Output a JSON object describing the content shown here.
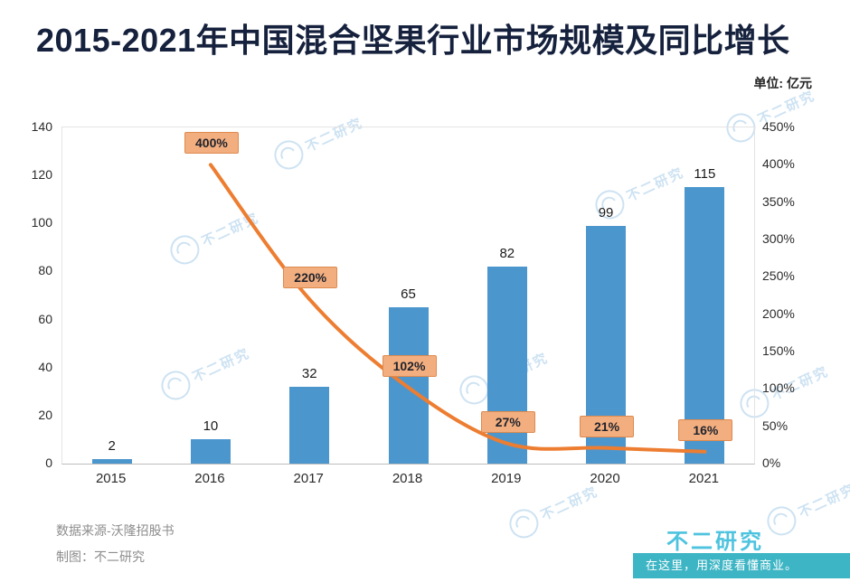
{
  "title": "2015-2021年中国混合坚果行业市场规模及同比增长",
  "unit_label": "单位: 亿元",
  "watermark_text": "不二研究",
  "footer": {
    "source": "数据来源-沃隆招股书",
    "credit": "制图：不二研究",
    "brand": "不二研究",
    "tagline": "在这里，用深度看懂商业。"
  },
  "colors": {
    "bar": "#4C96CE",
    "line": "#ED7D31",
    "label_box_bg": "#F3AE7F",
    "label_box_border": "#DE8A4E",
    "brand_teal": "#3EB5C4",
    "title_color": "#15213d",
    "watermark": "#a5cbe9"
  },
  "chart_data": {
    "type": "bar",
    "subtype": "bar+line combo",
    "title": "2015-2021年中国混合坚果行业市场规模及同比增长",
    "categories": [
      "2015",
      "2016",
      "2017",
      "2018",
      "2019",
      "2020",
      "2021"
    ],
    "series": [
      {
        "name": "市场规模(亿元)",
        "type": "bar",
        "axis": "left",
        "values": [
          2,
          10,
          32,
          65,
          82,
          99,
          115
        ],
        "value_labels": [
          "2",
          "10",
          "32",
          "65",
          "82",
          "99",
          "115"
        ]
      },
      {
        "name": "同比增长",
        "type": "line",
        "axis": "right",
        "x": [
          "2016",
          "2017",
          "2018",
          "2019",
          "2020",
          "2021"
        ],
        "values_pct": [
          400,
          220,
          102,
          27,
          21,
          16
        ],
        "value_labels": [
          "400%",
          "220%",
          "102%",
          "27%",
          "21%",
          "16%"
        ]
      }
    ],
    "left_axis": {
      "min": 0,
      "max": 140,
      "ticks": [
        "140",
        "120",
        "100",
        "80",
        "60",
        "40",
        "20",
        "0"
      ]
    },
    "right_axis": {
      "min": 0,
      "max": 450,
      "ticks": [
        "450%",
        "400%",
        "350%",
        "300%",
        "250%",
        "200%",
        "150%",
        "100%",
        "50%",
        "0%"
      ]
    },
    "grid": false,
    "legend": "none"
  }
}
